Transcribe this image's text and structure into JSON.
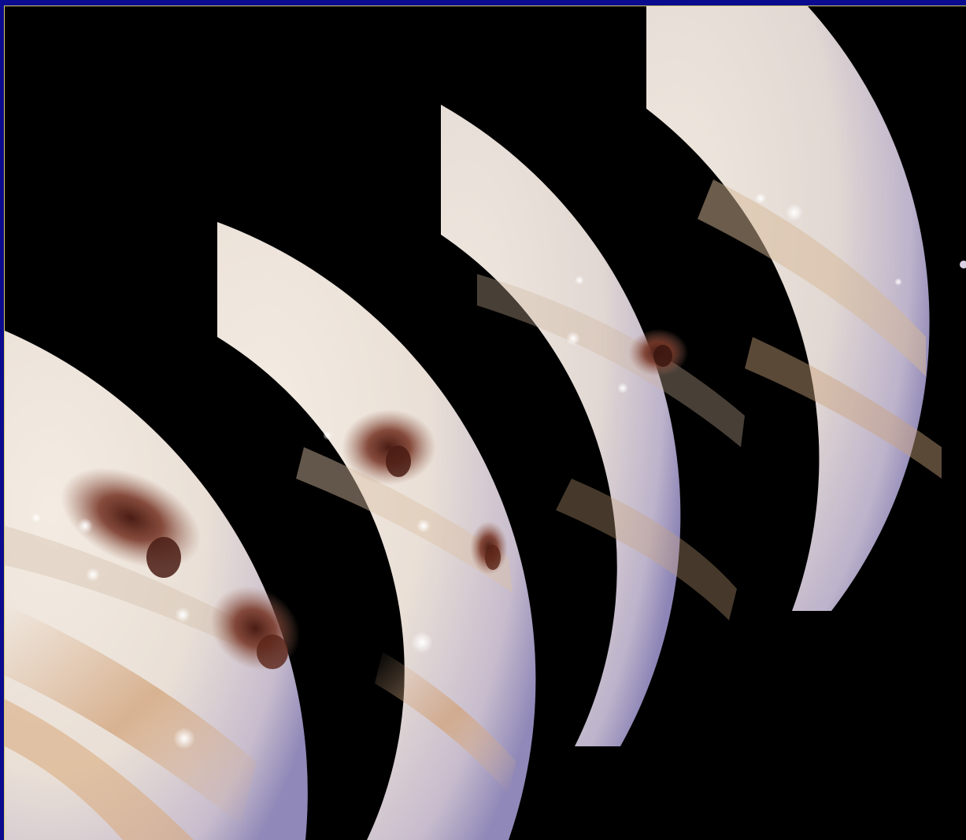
{
  "image": {
    "subject": "jupiter-impact-sequence",
    "frame_color": "#0b0b8f",
    "border_color": "#d6c96a",
    "background_color": "#000000",
    "colors": {
      "cloud_light": "#efe6dc",
      "cloud_band": "#c9a27c",
      "limb_violet": "#8f88b8",
      "impact_scar": "#6b2f22"
    }
  }
}
